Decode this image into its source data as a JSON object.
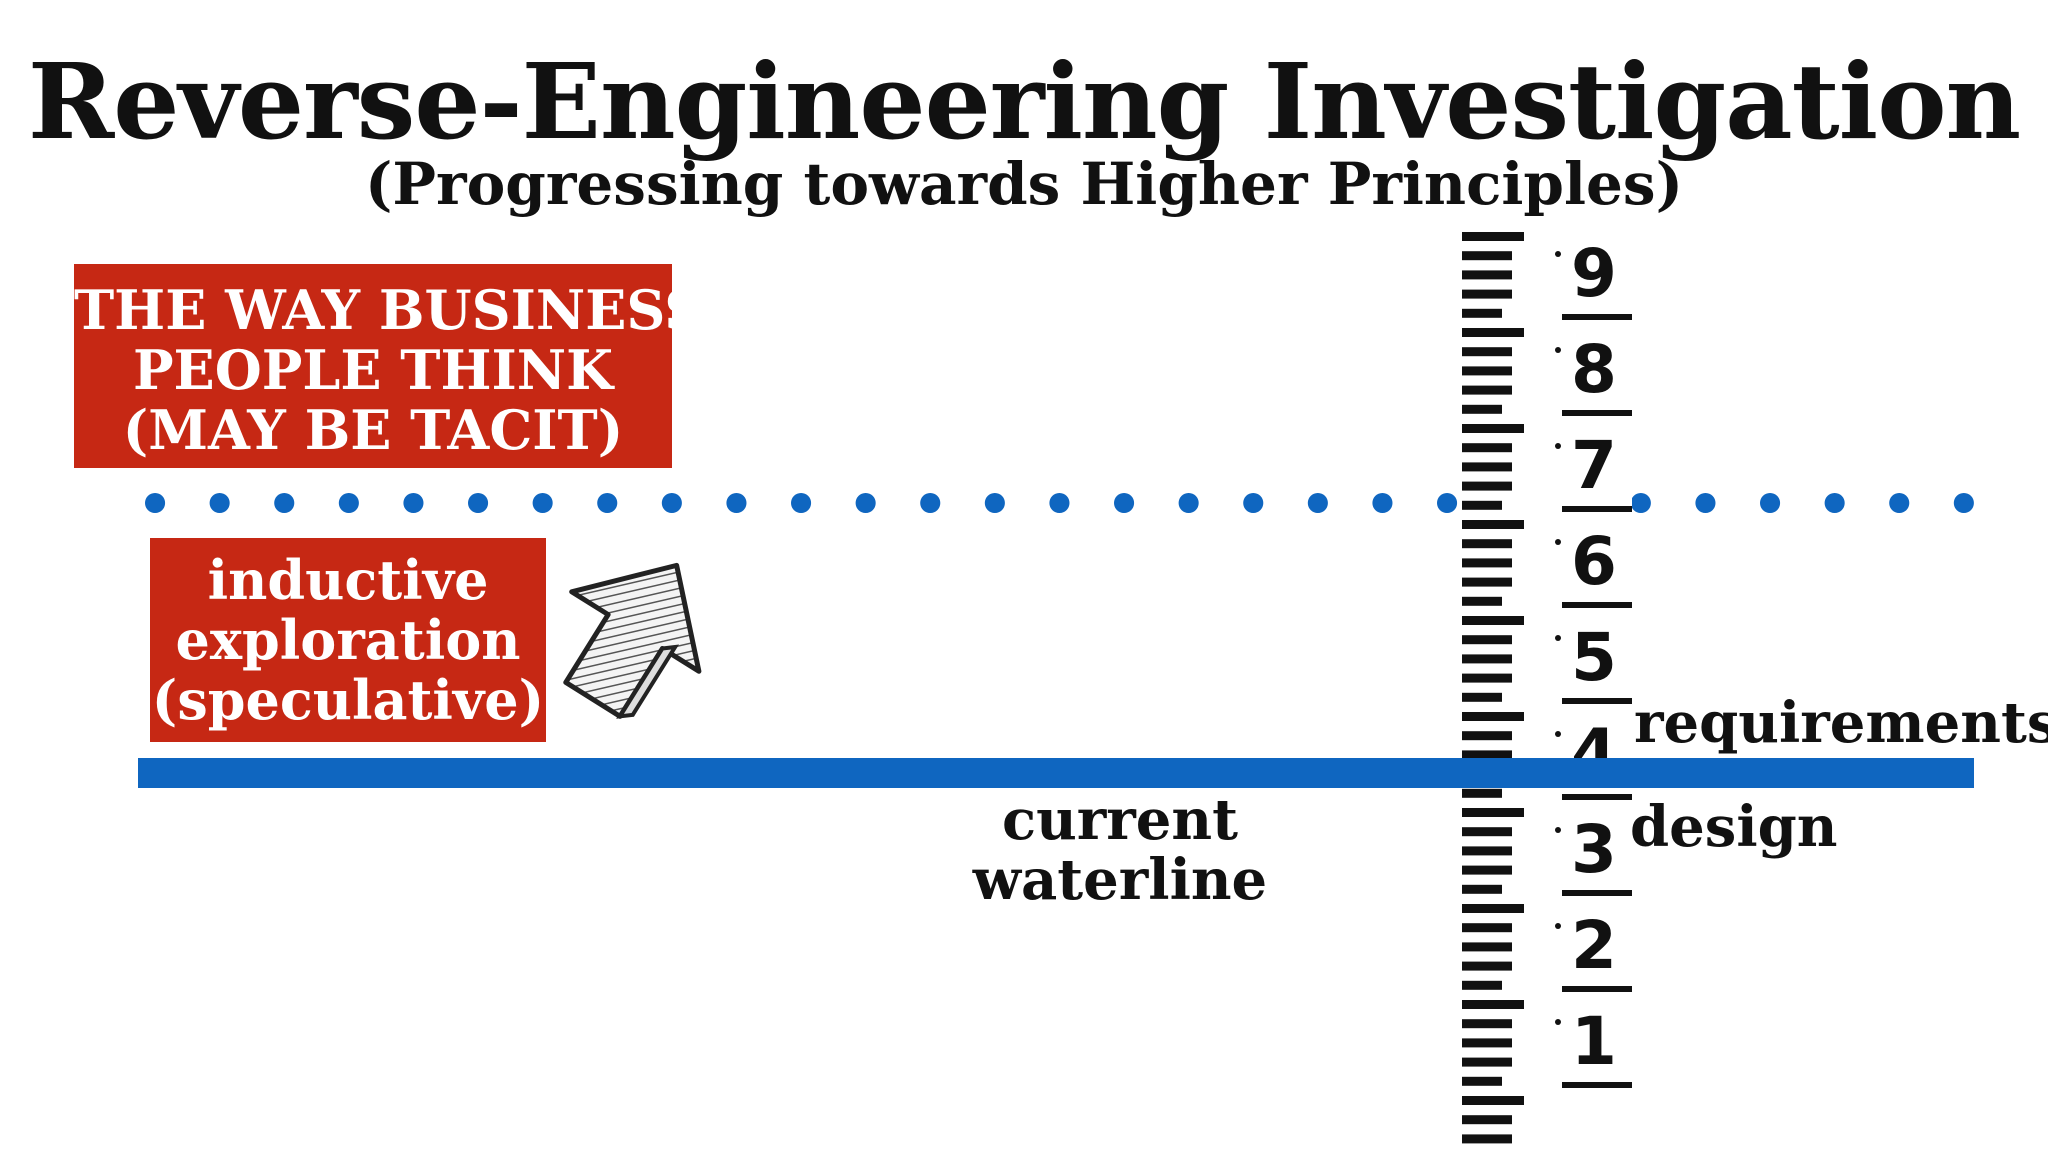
{
  "title": "Reverse-Engineering Investigation",
  "subtitle": "(Progressing towards Higher Principles)",
  "business_box": {
    "lines": [
      "THE WAY BUSINESS",
      "PEOPLE THINK",
      "(MAY BE TACIT)"
    ]
  },
  "inductive_box": {
    "lines": [
      "inductive",
      "exploration",
      "(speculative)"
    ]
  },
  "waterline_label": [
    "current",
    "waterline"
  ],
  "level_labels": {
    "requirements": "requirements",
    "design": "design"
  },
  "ruler_numbers": [
    "9",
    "8",
    "7",
    "6",
    "5",
    "4",
    "3",
    "2",
    "1"
  ],
  "colors": {
    "red": "#c62814",
    "blue": "#0f66c0",
    "text": "#111111"
  },
  "icons": {
    "arrow": "hatched-up-arrow-icon"
  }
}
